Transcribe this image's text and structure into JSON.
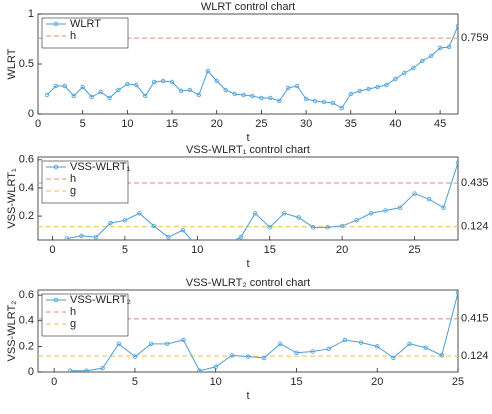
{
  "chart_data": [
    {
      "type": "line",
      "title": "WLRT control chart",
      "xlabel": "t",
      "ylabel": "WLRT",
      "x": [
        1,
        2,
        3,
        4,
        5,
        6,
        7,
        8,
        9,
        10,
        11,
        12,
        13,
        14,
        15,
        16,
        17,
        18,
        19,
        20,
        21,
        22,
        23,
        24,
        25,
        26,
        27,
        28,
        29,
        30,
        31,
        32,
        33,
        34,
        35,
        36,
        37,
        38,
        39,
        40,
        41,
        42,
        43,
        44,
        45,
        46,
        47
      ],
      "series": [
        {
          "name": "WLRT",
          "color": "#4a9fd8",
          "values": [
            0.19,
            0.28,
            0.28,
            0.18,
            0.27,
            0.17,
            0.22,
            0.16,
            0.24,
            0.3,
            0.29,
            0.18,
            0.32,
            0.33,
            0.32,
            0.23,
            0.24,
            0.19,
            0.43,
            0.33,
            0.24,
            0.2,
            0.19,
            0.18,
            0.16,
            0.16,
            0.13,
            0.26,
            0.28,
            0.15,
            0.13,
            0.12,
            0.11,
            0.06,
            0.2,
            0.23,
            0.25,
            0.27,
            0.29,
            0.35,
            0.41,
            0.46,
            0.53,
            0.58,
            0.66,
            0.67,
            0.88
          ]
        }
      ],
      "lines": [
        {
          "name": "h",
          "color": "#e8897a",
          "value": 0.759
        }
      ],
      "xlim": [
        0,
        47
      ],
      "xticks": [
        0,
        5,
        10,
        15,
        20,
        25,
        30,
        35,
        40,
        45
      ],
      "ylim": [
        0,
        1
      ],
      "yticks": [
        0,
        0.5,
        1
      ],
      "legend": "upper left"
    },
    {
      "type": "line",
      "title": "VSS-WLRT₁ control chart",
      "xlabel": "t",
      "ylabel": "VSS-WLRT₁",
      "x": [
        1,
        2,
        3,
        4,
        5,
        6,
        7,
        8,
        9,
        10,
        11,
        12,
        13,
        14,
        15,
        16,
        17,
        18,
        19,
        20,
        21,
        22,
        23,
        24,
        25,
        26,
        27,
        28
      ],
      "series": [
        {
          "name": "VSS-WLRT₁",
          "color": "#4a9fd8",
          "values": [
            0.04,
            0.06,
            0.05,
            0.15,
            0.17,
            0.22,
            0.13,
            0.05,
            0.1,
            -0.02,
            -0.05,
            0.0,
            0.05,
            0.22,
            0.12,
            0.22,
            0.19,
            0.12,
            0.12,
            0.13,
            0.17,
            0.22,
            0.24,
            0.26,
            0.36,
            0.32,
            0.26,
            0.58
          ]
        }
      ],
      "lines": [
        {
          "name": "h",
          "color": "#e8897a",
          "value": 0.435
        },
        {
          "name": "g",
          "color": "#edc04a",
          "value": 0.124
        }
      ],
      "xlim": [
        -1,
        28
      ],
      "xticks": [
        0,
        5,
        10,
        15,
        20,
        25
      ],
      "ylim": [
        0.03,
        0.62
      ],
      "yticks": [
        0.2,
        0.4,
        0.6
      ],
      "legend": "upper left"
    },
    {
      "type": "line",
      "title": "VSS-WLRT₂ control chart",
      "xlabel": "t",
      "ylabel": "VSS-WLRT₂",
      "x": [
        1,
        2,
        3,
        4,
        5,
        6,
        7,
        8,
        9,
        10,
        11,
        12,
        13,
        14,
        15,
        16,
        17,
        18,
        19,
        20,
        21,
        22,
        23,
        24,
        25
      ],
      "series": [
        {
          "name": "VSS-WLRT₂",
          "color": "#4a9fd8",
          "values": [
            0.01,
            0.01,
            0.03,
            0.22,
            0.12,
            0.22,
            0.22,
            0.25,
            0.01,
            0.04,
            0.13,
            0.12,
            0.11,
            0.22,
            0.15,
            0.16,
            0.18,
            0.25,
            0.23,
            0.2,
            0.11,
            0.22,
            0.19,
            0.13,
            0.62
          ]
        }
      ],
      "lines": [
        {
          "name": "h",
          "color": "#e8897a",
          "value": 0.415
        },
        {
          "name": "g",
          "color": "#edc04a",
          "value": 0.124
        }
      ],
      "xlim": [
        -1,
        25
      ],
      "xticks": [
        0,
        5,
        10,
        15,
        20,
        25
      ],
      "ylim": [
        0,
        0.64
      ],
      "yticks": [
        0,
        0.2,
        0.4,
        0.6
      ],
      "legend": "upper left"
    }
  ]
}
